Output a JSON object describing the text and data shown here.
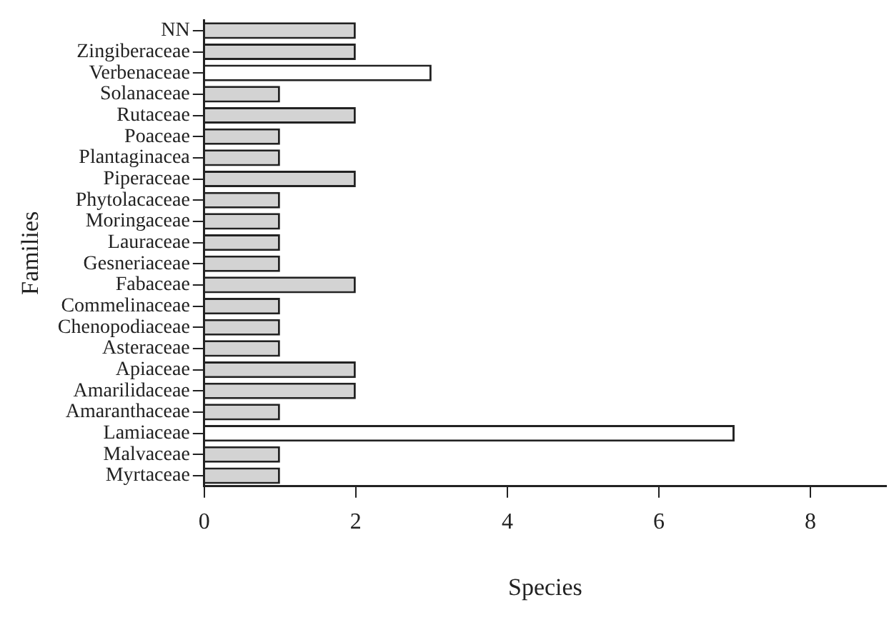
{
  "chart_data": {
    "type": "bar",
    "orientation": "horizontal",
    "xlabel": "Species",
    "ylabel": "Families",
    "categories": [
      "NN",
      "Zingiberaceae",
      "Verbenaceae",
      "Solanaceae",
      "Rutaceae",
      "Poaceae",
      "Plantaginacea",
      "Piperaceae",
      "Phytolacaceae",
      "Moringaceae",
      "Lauraceae",
      "Gesneriaceae",
      "Fabaceae",
      "Commelinaceae",
      "Chenopodiaceae",
      "Asteraceae",
      "Apiaceae",
      "Amarilidaceae",
      "Amaranthaceae",
      "Lamiaceae",
      "Malvaceae",
      "Myrtaceae"
    ],
    "values": [
      2,
      2,
      3,
      1,
      2,
      1,
      1,
      2,
      1,
      1,
      1,
      1,
      2,
      1,
      1,
      1,
      2,
      2,
      1,
      7,
      1,
      1
    ],
    "colors": [
      "#d3d3d3",
      "#d3d3d3",
      "#ffffff",
      "#d3d3d3",
      "#d3d3d3",
      "#d3d3d3",
      "#d3d3d3",
      "#d3d3d3",
      "#d3d3d3",
      "#d3d3d3",
      "#d3d3d3",
      "#d3d3d3",
      "#d3d3d3",
      "#d3d3d3",
      "#d3d3d3",
      "#d3d3d3",
      "#d3d3d3",
      "#d3d3d3",
      "#d3d3d3",
      "#ffffff",
      "#d3d3d3",
      "#d3d3d3"
    ],
    "xlim": [
      0,
      9
    ],
    "xticks": [
      0,
      2,
      4,
      6,
      8
    ],
    "grid": false,
    "legend": false
  }
}
